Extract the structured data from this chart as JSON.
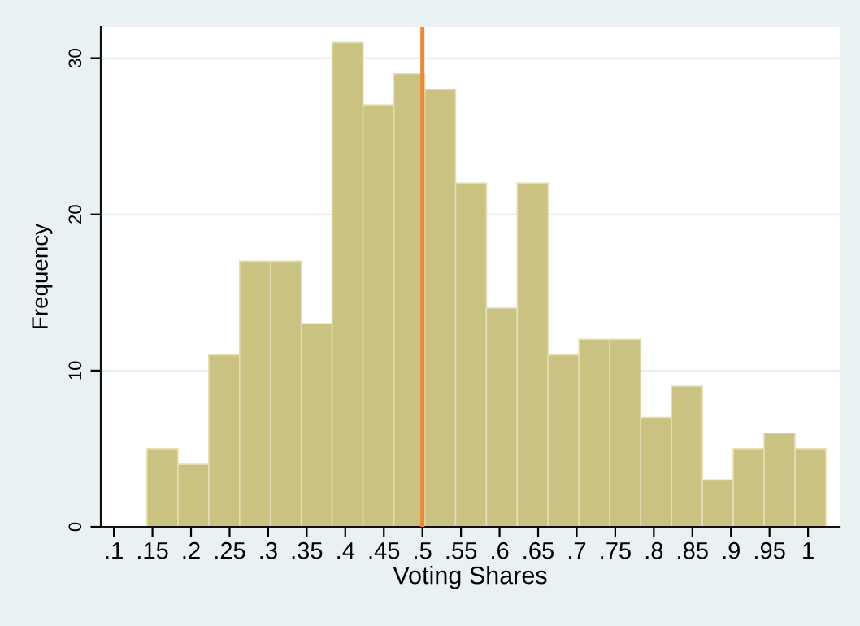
{
  "chart_data": {
    "type": "histogram",
    "xlabel": "Voting Shares",
    "ylabel": "Frequency",
    "bins": [
      0.143,
      0.183,
      0.223,
      0.263,
      0.303,
      0.343,
      0.383,
      0.423,
      0.463,
      0.503,
      0.543,
      0.583,
      0.623,
      0.663,
      0.703,
      0.743,
      0.783,
      0.823,
      0.863,
      0.903,
      0.943,
      0.983,
      1.023
    ],
    "values": [
      5,
      4,
      11,
      17,
      17,
      13,
      31,
      27,
      29,
      28,
      22,
      14,
      22,
      11,
      12,
      12,
      7,
      9,
      3,
      5,
      6,
      5
    ],
    "color": "#c9c281",
    "xlim": [
      0.083,
      1.041
    ],
    "ylim": [
      0,
      32
    ],
    "xticks": [
      {
        "value": 0.1,
        "label": ".1"
      },
      {
        "value": 0.15,
        "label": ".15"
      },
      {
        "value": 0.2,
        "label": ".2"
      },
      {
        "value": 0.25,
        "label": ".25"
      },
      {
        "value": 0.3,
        "label": ".3"
      },
      {
        "value": 0.35,
        "label": ".35"
      },
      {
        "value": 0.4,
        "label": ".4"
      },
      {
        "value": 0.45,
        "label": ".45"
      },
      {
        "value": 0.5,
        "label": ".5"
      },
      {
        "value": 0.55,
        "label": ".55"
      },
      {
        "value": 0.6,
        "label": ".6"
      },
      {
        "value": 0.65,
        "label": ".65"
      },
      {
        "value": 0.7,
        "label": ".7"
      },
      {
        "value": 0.75,
        "label": ".75"
      },
      {
        "value": 0.8,
        "label": ".8"
      },
      {
        "value": 0.85,
        "label": ".85"
      },
      {
        "value": 0.9,
        "label": ".9"
      },
      {
        "value": 0.95,
        "label": ".95"
      },
      1
    ],
    "yticks": [
      0,
      10,
      20,
      30
    ],
    "ref_lines": [
      {
        "axis": "x",
        "value": 0.5,
        "color": "#ee8632",
        "line_style": "solid"
      }
    ],
    "grid": "y"
  }
}
